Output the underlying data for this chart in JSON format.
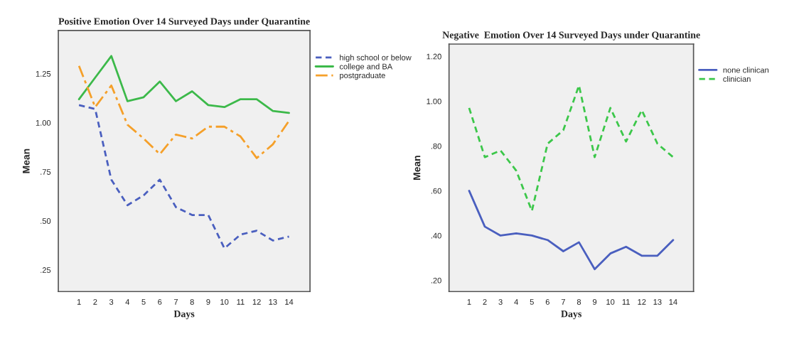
{
  "chart_data": [
    {
      "type": "line",
      "title": "Positive Emotion Over 14 Surveyed Days under Quarantine",
      "xlabel": "Days",
      "ylabel": "Mean",
      "categories": [
        "1",
        "2",
        "3",
        "4",
        "5",
        "6",
        "7",
        "8",
        "9",
        "10",
        "11",
        "12",
        "13",
        "14"
      ],
      "series": [
        {
          "name": "high school or below",
          "color": "#4a5fbf",
          "line_style": "dashed",
          "values": [
            1.09,
            1.07,
            0.71,
            0.58,
            0.63,
            0.71,
            0.57,
            0.53,
            0.53,
            0.36,
            0.43,
            0.45,
            0.4,
            0.42
          ]
        },
        {
          "name": "college and BA",
          "color": "#3cb94a",
          "line_style": "solid",
          "values": [
            1.12,
            1.23,
            1.34,
            1.11,
            1.13,
            1.21,
            1.11,
            1.16,
            1.09,
            1.08,
            1.12,
            1.12,
            1.06,
            1.05
          ]
        },
        {
          "name": "postgraduate",
          "color": "#f5a02a",
          "line_style": "dashdot",
          "values": [
            1.29,
            1.08,
            1.19,
            0.99,
            0.92,
            0.84,
            0.94,
            0.92,
            0.98,
            0.98,
            0.93,
            0.82,
            0.89,
            1.01
          ]
        }
      ],
      "ylim": [
        0.14,
        1.47
      ],
      "yticks": [
        {
          "value": 0.25,
          "label": ".25"
        },
        {
          "value": 0.5,
          "label": ".50"
        },
        {
          "value": 0.75,
          "label": ".75"
        },
        {
          "value": 1.0,
          "label": "1.00"
        },
        {
          "value": 1.25,
          "label": "1.25"
        }
      ],
      "legend": "right",
      "grid": false,
      "marker": "none"
    },
    {
      "type": "line",
      "title": "Negative  Emotion Over 14 Surveyed Days under Quarantine",
      "xlabel": "Days",
      "ylabel": "Mean",
      "categories": [
        "1",
        "2",
        "3",
        "4",
        "5",
        "6",
        "7",
        "8",
        "9",
        "10",
        "11",
        "12",
        "13",
        "14"
      ],
      "series": [
        {
          "name": "none clinican",
          "color": "#4a5fbf",
          "line_style": "solid",
          "values": [
            0.6,
            0.44,
            0.4,
            0.41,
            0.4,
            0.38,
            0.33,
            0.37,
            0.25,
            0.32,
            0.35,
            0.31,
            0.31,
            0.38
          ]
        },
        {
          "name": "clinician",
          "color": "#3cc74a",
          "line_style": "dashed",
          "values": [
            0.97,
            0.75,
            0.78,
            0.69,
            0.51,
            0.81,
            0.87,
            1.07,
            0.75,
            0.97,
            0.82,
            0.96,
            0.81,
            0.75
          ]
        }
      ],
      "ylim": [
        0.15,
        1.255
      ],
      "yticks": [
        {
          "value": 0.2,
          "label": ".20"
        },
        {
          "value": 0.4,
          "label": ".40"
        },
        {
          "value": 0.6,
          "label": ".60"
        },
        {
          "value": 0.8,
          "label": ".80"
        },
        {
          "value": 1.0,
          "label": "1.00"
        },
        {
          "value": 1.2,
          "label": "1.20"
        }
      ],
      "legend": "right",
      "grid": false,
      "marker": "none"
    }
  ]
}
